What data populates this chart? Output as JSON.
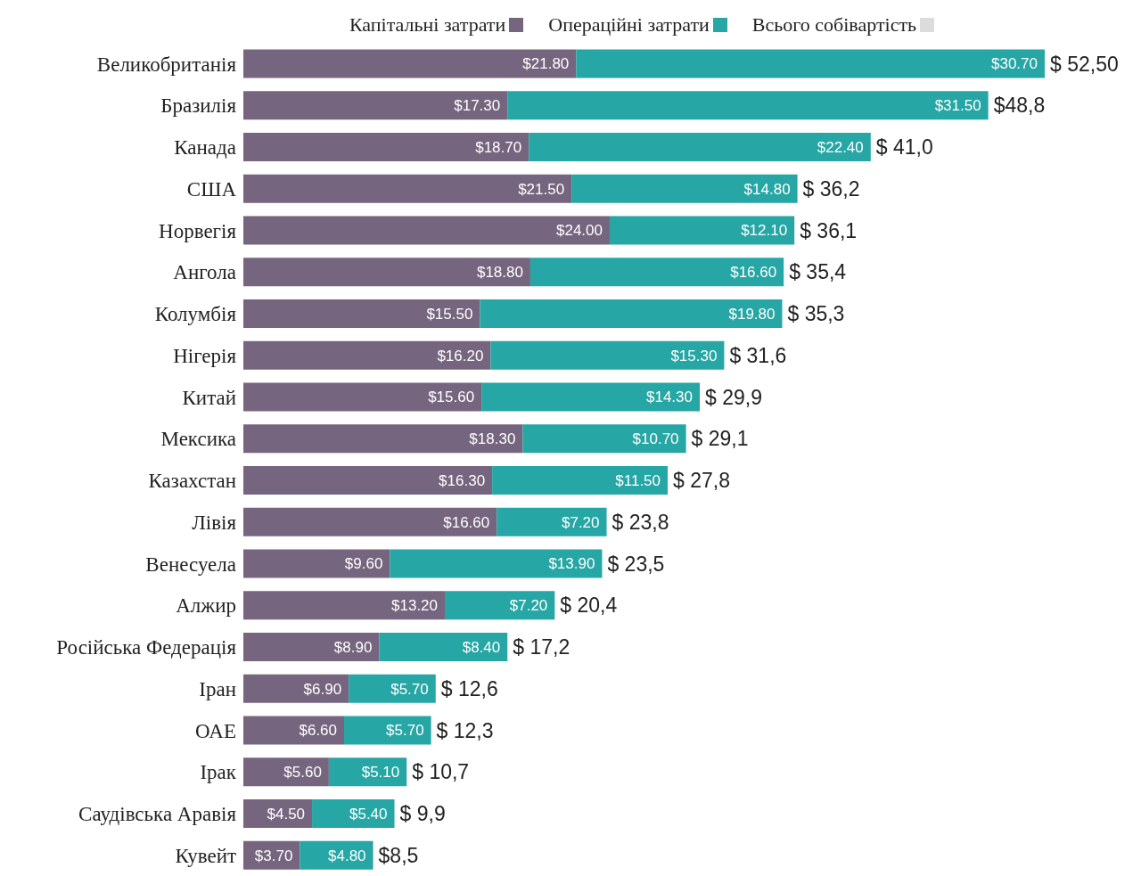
{
  "chart_data": {
    "type": "bar",
    "orientation": "horizontal",
    "stacked": true,
    "legend": "top",
    "tick_labels": "y",
    "categories": [
      "Великобританія",
      "Бразилія",
      "Канада",
      "США",
      "Норвегія",
      "Ангола",
      "Колумбія",
      "Нігерія",
      "Китай",
      "Мексика",
      "Казахстан",
      "Лівія",
      "Венесуела",
      "Алжир",
      "Російська Федерація",
      "Іран",
      "ОАЕ",
      "Ірак",
      "Саудівська Аравія",
      "Кувейт"
    ],
    "series": [
      {
        "name": "Капітальні затрати",
        "color": "#76657f",
        "values": [
          21.8,
          17.3,
          18.7,
          21.5,
          24.0,
          18.8,
          15.5,
          16.2,
          15.6,
          18.3,
          16.3,
          16.6,
          9.6,
          13.2,
          8.9,
          6.9,
          6.6,
          5.6,
          4.5,
          3.7
        ],
        "value_labels": [
          "$21.80",
          "$17.30",
          "$18.70",
          "$21.50",
          "$24.00",
          "$18.80",
          "$15.50",
          "$16.20",
          "$15.60",
          "$18.30",
          "$16.30",
          "$16.60",
          "$9.60",
          "$13.20",
          "$8.90",
          "$6.90",
          "$6.60",
          "$5.60",
          "$4.50",
          "$3.70"
        ]
      },
      {
        "name": "Операційні затрати",
        "color": "#26a6a4",
        "values": [
          30.7,
          31.5,
          22.4,
          14.8,
          12.1,
          16.6,
          19.8,
          15.3,
          14.3,
          10.7,
          11.5,
          7.2,
          13.9,
          7.2,
          8.4,
          5.7,
          5.7,
          5.1,
          5.4,
          4.8
        ],
        "value_labels": [
          "$30.70",
          "$31.50",
          "$22.40",
          "$14.80",
          "$12.10",
          "$16.60",
          "$19.80",
          "$15.30",
          "$14.30",
          "$10.70",
          "$11.50",
          "$7.20",
          "$13.90",
          "$7.20",
          "$8.40",
          "$5.70",
          "$5.70",
          "$5.10",
          "$5.40",
          "$4.80"
        ]
      },
      {
        "name": "Всього собівартість",
        "color": "#dcdcdc",
        "values": [
          null,
          null,
          null,
          null,
          null,
          null,
          null,
          null,
          null,
          null,
          null,
          null,
          null,
          null,
          null,
          null,
          null,
          null,
          null,
          null
        ]
      }
    ],
    "totals": [
      "$ 52,50",
      "$48,8",
      "$ 41,0",
      "$ 36,2",
      "$ 36,1",
      "$ 35,4",
      "$ 35,3",
      "$ 31,6",
      "$ 29,9",
      "$ 29,1",
      "$ 27,8",
      "$ 23,8",
      "$ 23,5",
      "$ 20,4",
      "$ 17,2",
      "$ 12,6",
      "$ 12,3",
      "$ 10,7",
      "$ 9,9",
      "$8,5"
    ]
  }
}
